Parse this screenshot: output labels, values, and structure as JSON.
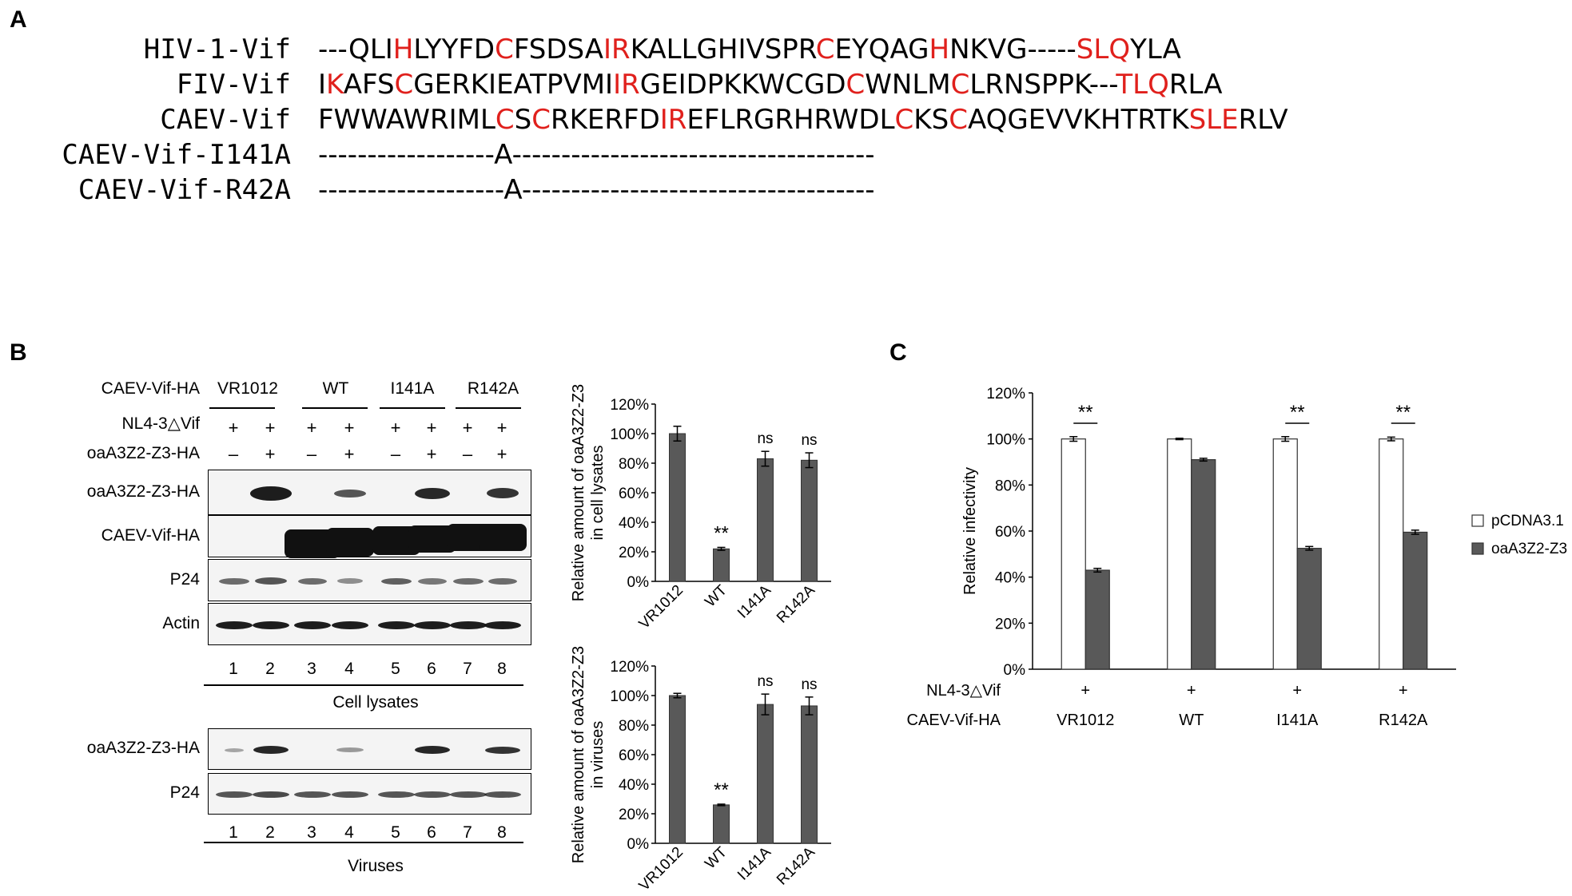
{
  "panels": {
    "a": "A",
    "b": "B",
    "c": "C"
  },
  "alignment": {
    "rows": [
      {
        "label": "HIV-1-Vif",
        "segments": [
          [
            "---QL",
            ""
          ],
          [
            "I",
            ""
          ],
          [
            "H",
            "hl"
          ],
          [
            "LYYFD",
            ""
          ],
          [
            "C",
            "hl"
          ],
          [
            "FSDSA",
            ""
          ],
          [
            "IR",
            "hl"
          ],
          [
            "KALLGHIVSPR",
            ""
          ],
          [
            "C",
            "hl"
          ],
          [
            "EYQAG",
            ""
          ],
          [
            "H",
            "hl"
          ],
          [
            "NKVG-----",
            ""
          ],
          [
            "SLQ",
            "hl"
          ],
          [
            "YLA",
            ""
          ]
        ]
      },
      {
        "label": "FIV-Vif",
        "segments": [
          [
            "I",
            ""
          ],
          [
            "K",
            "hl"
          ],
          [
            "AFS",
            ""
          ],
          [
            "C",
            "hl"
          ],
          [
            "GERKIEATPVMI",
            ""
          ],
          [
            "IR",
            "hl"
          ],
          [
            "GEIDPKKWCGD",
            ""
          ],
          [
            "C",
            "hl"
          ],
          [
            "WNLM",
            ""
          ],
          [
            "C",
            "hl"
          ],
          [
            "LRNSPPK---",
            ""
          ],
          [
            "TLQ",
            "hl"
          ],
          [
            "RLA",
            ""
          ]
        ]
      },
      {
        "label": "CAEV-Vif",
        "segments": [
          [
            "FWWAWRIML",
            ""
          ],
          [
            "C",
            "hl"
          ],
          [
            "S",
            ""
          ],
          [
            "C",
            "hl"
          ],
          [
            "RKERFD",
            ""
          ],
          [
            "IR",
            "hl"
          ],
          [
            "EFLRGRHRWDL",
            ""
          ],
          [
            "C",
            "hl"
          ],
          [
            "KS",
            ""
          ],
          [
            "C",
            "hl"
          ],
          [
            "AQGEVVKHTRTK",
            ""
          ],
          [
            "SLE",
            "hl"
          ],
          [
            "RLV",
            ""
          ]
        ]
      },
      {
        "label": "CAEV-Vif-I141A",
        "segments": [
          [
            "------------------A-------------------------------------",
            ""
          ]
        ]
      },
      {
        "label": "CAEV-Vif-R42A",
        "segments": [
          [
            "-------------------A------------------------------------",
            ""
          ]
        ]
      }
    ]
  },
  "blot": {
    "header_label": "CAEV-Vif-HA",
    "groups": [
      "VR1012",
      "WT",
      "I141A",
      "R142A"
    ],
    "row_nl43": "NL4-3△Vif",
    "row_oa": "oaA3Z2-Z3-HA",
    "nl43_signs": [
      "+",
      "+",
      "+",
      "+",
      "+",
      "+",
      "+",
      "+"
    ],
    "oa_signs": [
      "–",
      "+",
      "–",
      "+",
      "–",
      "+",
      "–",
      "+"
    ],
    "lysate_rows": [
      "oaA3Z2-Z3-HA",
      "CAEV-Vif-HA",
      "P24",
      "Actin"
    ],
    "lane_numbers": [
      "1",
      "2",
      "3",
      "4",
      "5",
      "6",
      "7",
      "8"
    ],
    "lysate_caption": "Cell lysates",
    "virus_rows": [
      "oaA3Z2-Z3-HA",
      "P24"
    ],
    "virus_caption": "Viruses"
  },
  "chart_data": [
    {
      "type": "bar",
      "categories": [
        "VR1012",
        "WT",
        "I141A",
        "R142A"
      ],
      "values": [
        100,
        22,
        83,
        82
      ],
      "errors": [
        5,
        1,
        5,
        5
      ],
      "annotations": [
        "",
        "**",
        "ns",
        "ns"
      ],
      "ylabel_lines": [
        "Relative amount of oaA3Z2-Z3",
        "in cell lysates"
      ],
      "yticks": [
        "0%",
        "20%",
        "40%",
        "60%",
        "80%",
        "100%",
        "120%"
      ],
      "ylim": [
        0,
        120
      ],
      "color": "#595959"
    },
    {
      "type": "bar",
      "categories": [
        "VR1012",
        "WT",
        "I141A",
        "R142A"
      ],
      "values": [
        100,
        26,
        94,
        93
      ],
      "errors": [
        1.5,
        0.5,
        7,
        6
      ],
      "annotations": [
        "",
        "**",
        "ns",
        "ns"
      ],
      "ylabel_lines": [
        "Relative amount of oaA3Z2-Z3",
        "in viruses"
      ],
      "yticks": [
        "0%",
        "20%",
        "40%",
        "60%",
        "80%",
        "100%",
        "120%"
      ],
      "ylim": [
        0,
        120
      ],
      "color": "#595959"
    },
    {
      "type": "bar",
      "categories": [
        "VR1012",
        "WT",
        "I141A",
        "R142A"
      ],
      "series": [
        {
          "name": "pCDNA3.1",
          "values": [
            100,
            100,
            100,
            100
          ],
          "errors": [
            1,
            0.3,
            1,
            0.8
          ],
          "color": "#ffffff"
        },
        {
          "name": "oaA3Z2-Z3",
          "values": [
            43,
            91,
            52.5,
            59.5
          ],
          "errors": [
            0.8,
            0.6,
            0.8,
            0.9
          ],
          "color": "#595959"
        }
      ],
      "significance": [
        "**",
        "",
        "**",
        "**"
      ],
      "ylabel": "Relative infectivity",
      "yticks": [
        "0%",
        "20%",
        "40%",
        "60%",
        "80%",
        "100%",
        "120%"
      ],
      "ylim": [
        0,
        120
      ],
      "row1_label": "NL4-3△Vif",
      "row1_signs": [
        "+",
        "+",
        "+",
        "+"
      ],
      "row2_label": "CAEV-Vif-HA",
      "legend_position": "right"
    }
  ]
}
